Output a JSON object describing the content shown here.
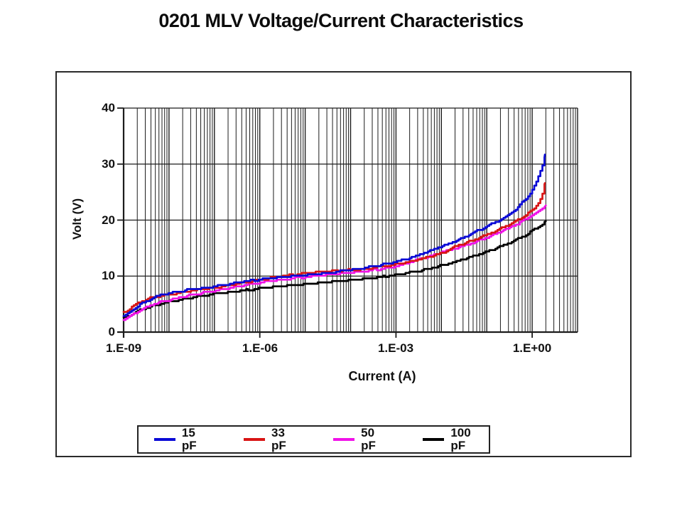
{
  "title": "0201 MLV Voltage/Current Characteristics",
  "legend": {
    "items": [
      {
        "label": "15 pF",
        "color": "#0a0ad6"
      },
      {
        "label": "33 pF",
        "color": "#d81414"
      },
      {
        "label": "50 pF",
        "color": "#f012e8"
      },
      {
        "label": "100 pF",
        "color": "#000000"
      }
    ]
  },
  "chart_data": {
    "type": "line",
    "title": "0201 MLV Voltage/Current Characteristics",
    "xlabel": "Current (A)",
    "ylabel": "Volt (V)",
    "x_scale": "log",
    "x_range_log10": [
      -9,
      1
    ],
    "ylim": [
      0,
      40
    ],
    "grid": "vertical log minor+major lines, horizontal major lines, legend boxed below",
    "xtick_labels": [
      "1.E-09",
      "1.E-06",
      "1.E-03",
      "1.E+00"
    ],
    "xtick_log10": [
      -9,
      -6,
      -3,
      0
    ],
    "ytick_labels": [
      "0",
      "10",
      "20",
      "30",
      "40"
    ],
    "ytick_values": [
      0,
      10,
      20,
      30,
      40
    ],
    "series": [
      {
        "name": "15 pF",
        "color": "#0a0ad6",
        "points": [
          [
            -9.0,
            2.9
          ],
          [
            -8.85,
            3.6
          ],
          [
            -8.7,
            4.6
          ],
          [
            -8.55,
            5.3
          ],
          [
            -8.4,
            5.9
          ],
          [
            -8.25,
            6.4
          ],
          [
            -8.1,
            6.8
          ],
          [
            -7.95,
            7.0
          ],
          [
            -7.8,
            7.2
          ],
          [
            -7.6,
            7.5
          ],
          [
            -7.4,
            7.7
          ],
          [
            -7.2,
            7.9
          ],
          [
            -7.0,
            8.1
          ],
          [
            -6.8,
            8.4
          ],
          [
            -6.6,
            8.7
          ],
          [
            -6.4,
            9.0
          ],
          [
            -6.2,
            9.2
          ],
          [
            -6.0,
            9.4
          ],
          [
            -5.8,
            9.6
          ],
          [
            -5.6,
            9.7
          ],
          [
            -5.4,
            9.9
          ],
          [
            -5.2,
            10.0
          ],
          [
            -5.0,
            10.1
          ],
          [
            -4.8,
            10.3
          ],
          [
            -4.6,
            10.5
          ],
          [
            -4.4,
            10.7
          ],
          [
            -4.2,
            10.9
          ],
          [
            -4.0,
            11.1
          ],
          [
            -3.8,
            11.3
          ],
          [
            -3.6,
            11.6
          ],
          [
            -3.4,
            11.9
          ],
          [
            -3.2,
            12.2
          ],
          [
            -3.0,
            12.6
          ],
          [
            -2.8,
            13.0
          ],
          [
            -2.6,
            13.5
          ],
          [
            -2.4,
            14.1
          ],
          [
            -2.2,
            14.7
          ],
          [
            -2.0,
            15.3
          ],
          [
            -1.8,
            15.9
          ],
          [
            -1.6,
            16.6
          ],
          [
            -1.4,
            17.3
          ],
          [
            -1.2,
            18.1
          ],
          [
            -1.0,
            18.9
          ],
          [
            -0.8,
            19.7
          ],
          [
            -0.6,
            20.5
          ],
          [
            -0.45,
            21.3
          ],
          [
            -0.3,
            22.4
          ],
          [
            -0.2,
            23.3
          ],
          [
            -0.1,
            24.2
          ],
          [
            0.0,
            25.4
          ],
          [
            0.08,
            26.6
          ],
          [
            0.15,
            28.0
          ],
          [
            0.2,
            29.2
          ],
          [
            0.25,
            30.4
          ],
          [
            0.28,
            31.7
          ]
        ]
      },
      {
        "name": "33 pF",
        "color": "#d81414",
        "points": [
          [
            -9.0,
            3.5
          ],
          [
            -8.85,
            4.3
          ],
          [
            -8.7,
            5.1
          ],
          [
            -8.55,
            5.7
          ],
          [
            -8.4,
            6.1
          ],
          [
            -8.25,
            6.4
          ],
          [
            -8.1,
            6.6
          ],
          [
            -7.95,
            6.8
          ],
          [
            -7.8,
            7.0
          ],
          [
            -7.6,
            7.3
          ],
          [
            -7.4,
            7.5
          ],
          [
            -7.2,
            7.7
          ],
          [
            -7.0,
            7.9
          ],
          [
            -6.8,
            8.2
          ],
          [
            -6.6,
            8.5
          ],
          [
            -6.4,
            8.8
          ],
          [
            -6.2,
            9.1
          ],
          [
            -6.0,
            9.3
          ],
          [
            -5.8,
            9.6
          ],
          [
            -5.6,
            9.9
          ],
          [
            -5.4,
            10.1
          ],
          [
            -5.2,
            10.3
          ],
          [
            -5.0,
            10.5
          ],
          [
            -4.8,
            10.6
          ],
          [
            -4.6,
            10.8
          ],
          [
            -4.4,
            10.9
          ],
          [
            -4.2,
            11.0
          ],
          [
            -4.0,
            11.1
          ],
          [
            -3.8,
            11.2
          ],
          [
            -3.6,
            11.4
          ],
          [
            -3.4,
            11.6
          ],
          [
            -3.2,
            11.8
          ],
          [
            -3.0,
            12.1
          ],
          [
            -2.8,
            12.4
          ],
          [
            -2.6,
            12.8
          ],
          [
            -2.4,
            13.2
          ],
          [
            -2.2,
            13.6
          ],
          [
            -2.0,
            14.1
          ],
          [
            -1.8,
            14.8
          ],
          [
            -1.6,
            15.6
          ],
          [
            -1.4,
            16.1
          ],
          [
            -1.2,
            16.7
          ],
          [
            -1.0,
            17.4
          ],
          [
            -0.8,
            18.1
          ],
          [
            -0.6,
            18.9
          ],
          [
            -0.4,
            19.7
          ],
          [
            -0.2,
            20.6
          ],
          [
            -0.05,
            21.4
          ],
          [
            0.05,
            22.2
          ],
          [
            0.14,
            23.2
          ],
          [
            0.2,
            24.2
          ],
          [
            0.25,
            25.4
          ],
          [
            0.28,
            26.6
          ]
        ]
      },
      {
        "name": "50 pF",
        "color": "#f012e8",
        "points": [
          [
            -9.0,
            2.2
          ],
          [
            -8.85,
            2.9
          ],
          [
            -8.7,
            3.7
          ],
          [
            -8.55,
            4.3
          ],
          [
            -8.4,
            4.8
          ],
          [
            -8.25,
            5.2
          ],
          [
            -8.1,
            5.5
          ],
          [
            -7.95,
            5.8
          ],
          [
            -7.8,
            6.1
          ],
          [
            -7.6,
            6.5
          ],
          [
            -7.4,
            6.8
          ],
          [
            -7.2,
            7.1
          ],
          [
            -7.0,
            7.4
          ],
          [
            -6.8,
            7.7
          ],
          [
            -6.6,
            8.0
          ],
          [
            -6.4,
            8.3
          ],
          [
            -6.2,
            8.6
          ],
          [
            -6.0,
            8.8
          ],
          [
            -5.8,
            9.1
          ],
          [
            -5.6,
            9.3
          ],
          [
            -5.4,
            9.5
          ],
          [
            -5.2,
            9.7
          ],
          [
            -5.0,
            9.8
          ],
          [
            -4.8,
            10.0
          ],
          [
            -4.6,
            10.1
          ],
          [
            -4.4,
            10.3
          ],
          [
            -4.2,
            10.4
          ],
          [
            -4.0,
            10.6
          ],
          [
            -3.8,
            10.8
          ],
          [
            -3.6,
            11.0
          ],
          [
            -3.4,
            11.2
          ],
          [
            -3.2,
            11.5
          ],
          [
            -3.0,
            11.8
          ],
          [
            -2.8,
            12.1
          ],
          [
            -2.6,
            12.8
          ],
          [
            -2.4,
            13.2
          ],
          [
            -2.2,
            13.7
          ],
          [
            -2.0,
            14.3
          ],
          [
            -1.8,
            14.7
          ],
          [
            -1.6,
            15.2
          ],
          [
            -1.4,
            15.7
          ],
          [
            -1.2,
            16.3
          ],
          [
            -1.0,
            16.9
          ],
          [
            -0.8,
            17.6
          ],
          [
            -0.6,
            18.3
          ],
          [
            -0.4,
            19.0
          ],
          [
            -0.2,
            19.9
          ],
          [
            -0.05,
            20.6
          ],
          [
            0.1,
            21.4
          ],
          [
            0.2,
            21.9
          ],
          [
            0.3,
            22.6
          ]
        ]
      },
      {
        "name": "100 pF",
        "color": "#000000",
        "points": [
          [
            -9.0,
            2.5
          ],
          [
            -8.85,
            3.1
          ],
          [
            -8.7,
            3.7
          ],
          [
            -8.55,
            4.2
          ],
          [
            -8.4,
            4.6
          ],
          [
            -8.25,
            4.9
          ],
          [
            -8.1,
            5.2
          ],
          [
            -7.95,
            5.4
          ],
          [
            -7.8,
            5.7
          ],
          [
            -7.6,
            6.0
          ],
          [
            -7.4,
            6.3
          ],
          [
            -7.2,
            6.5
          ],
          [
            -7.0,
            6.8
          ],
          [
            -6.8,
            7.0
          ],
          [
            -6.6,
            7.2
          ],
          [
            -6.4,
            7.4
          ],
          [
            -6.2,
            7.6
          ],
          [
            -6.0,
            7.8
          ],
          [
            -5.8,
            8.0
          ],
          [
            -5.6,
            8.1
          ],
          [
            -5.4,
            8.3
          ],
          [
            -5.2,
            8.4
          ],
          [
            -5.0,
            8.5
          ],
          [
            -4.8,
            8.7
          ],
          [
            -4.6,
            8.8
          ],
          [
            -4.4,
            9.0
          ],
          [
            -4.2,
            9.1
          ],
          [
            -4.0,
            9.3
          ],
          [
            -3.8,
            9.4
          ],
          [
            -3.6,
            9.6
          ],
          [
            -3.4,
            9.8
          ],
          [
            -3.2,
            10.0
          ],
          [
            -3.0,
            10.2
          ],
          [
            -2.8,
            10.5
          ],
          [
            -2.6,
            10.8
          ],
          [
            -2.4,
            11.1
          ],
          [
            -2.2,
            11.5
          ],
          [
            -2.0,
            11.9
          ],
          [
            -1.8,
            12.3
          ],
          [
            -1.6,
            12.8
          ],
          [
            -1.4,
            13.3
          ],
          [
            -1.2,
            13.8
          ],
          [
            -1.0,
            14.4
          ],
          [
            -0.8,
            15.0
          ],
          [
            -0.64,
            15.5
          ],
          [
            -0.4,
            16.3
          ],
          [
            -0.2,
            17.1
          ],
          [
            -0.05,
            17.8
          ],
          [
            0.1,
            18.6
          ],
          [
            0.2,
            19.1
          ],
          [
            0.3,
            19.8
          ]
        ]
      }
    ]
  }
}
